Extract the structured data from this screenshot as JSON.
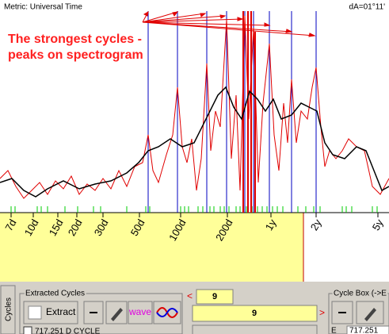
{
  "header": {
    "metric": "Metric: Universal Time",
    "angle": "dA=01°11'"
  },
  "annotation": {
    "lines": [
      "The strongest cycles -",
      "peaks on spectrogram"
    ]
  },
  "x_axis": {
    "labels": [
      "7d",
      "10d",
      "15d",
      "20d",
      "30d",
      "50d",
      "100d",
      "200d",
      "1y",
      "2y",
      "5y"
    ]
  },
  "panel": {
    "tab": "Cycles",
    "extracted_group": "Extracted Cycles",
    "extract_button": "Extract",
    "wave_button": "wave",
    "count_small": "9",
    "count_large": "9",
    "cycle_box_group": "Cycle Box (->E",
    "list_item": "717.251 D CYCLE",
    "cycle_box_value": "717.251",
    "side_tab": "E"
  }
}
